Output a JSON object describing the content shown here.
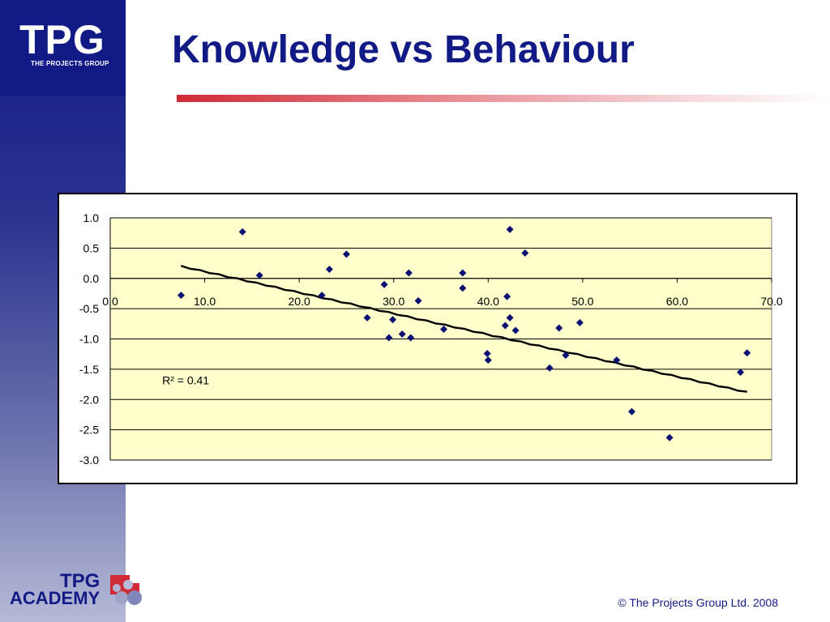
{
  "slide": {
    "title": "Knowledge vs Behaviour",
    "footer": "© The Projects Group Ltd. 2008"
  },
  "logo": {
    "main": "TPG",
    "sub": "THE PROJECTS GROUP"
  },
  "academy_logo": {
    "tpg": "TPG",
    "word": "ACADEMY"
  },
  "colors": {
    "brand_navy": "#121a86",
    "accent_red": "#cf2a36",
    "plot_background": "#ffffcc",
    "marker": "#0a1072",
    "trendline": "#000000"
  },
  "chart_data": {
    "type": "scatter",
    "title": "",
    "xlabel": "",
    "ylabel": "",
    "xlim": [
      0,
      70
    ],
    "ylim": [
      -3,
      1
    ],
    "x_ticks": [
      "0.0",
      "10.0",
      "20.0",
      "30.0",
      "40.0",
      "50.0",
      "60.0",
      "70.0"
    ],
    "y_ticks": [
      "1.0",
      "0.5",
      "0.0",
      "-0.5",
      "-1.0",
      "-1.5",
      "-2.0",
      "-2.5",
      "-3.0"
    ],
    "grid": "horizontal",
    "legend": "none",
    "series": [
      {
        "points": [
          [
            7.5,
            -0.28
          ],
          [
            14.0,
            0.77
          ],
          [
            15.8,
            0.05
          ],
          [
            22.4,
            -0.28
          ],
          [
            23.2,
            0.15
          ],
          [
            25.0,
            0.4
          ],
          [
            27.2,
            -0.65
          ],
          [
            29.0,
            -0.1
          ],
          [
            29.5,
            -0.98
          ],
          [
            29.9,
            -0.68
          ],
          [
            30.9,
            -0.92
          ],
          [
            31.6,
            0.09
          ],
          [
            31.8,
            -0.98
          ],
          [
            32.6,
            -0.37
          ],
          [
            35.3,
            -0.84
          ],
          [
            37.3,
            0.09
          ],
          [
            37.3,
            -0.16
          ],
          [
            39.9,
            -1.24
          ],
          [
            40.0,
            -1.35
          ],
          [
            41.8,
            -0.78
          ],
          [
            42.0,
            -0.3
          ],
          [
            42.3,
            0.81
          ],
          [
            42.3,
            -0.65
          ],
          [
            42.9,
            -0.86
          ],
          [
            43.9,
            0.42
          ],
          [
            46.5,
            -1.48
          ],
          [
            47.5,
            -0.82
          ],
          [
            48.2,
            -1.27
          ],
          [
            49.7,
            -0.73
          ],
          [
            53.6,
            -1.35
          ],
          [
            55.2,
            -2.2
          ],
          [
            59.2,
            -2.63
          ],
          [
            66.7,
            -1.55
          ],
          [
            67.4,
            -1.23
          ]
        ]
      }
    ],
    "trendline": {
      "type": "linear",
      "from": [
        7.5,
        0.2
      ],
      "to": [
        67.4,
        -1.88
      ],
      "label": "R² = 0.41",
      "r_squared": 0.41
    }
  }
}
